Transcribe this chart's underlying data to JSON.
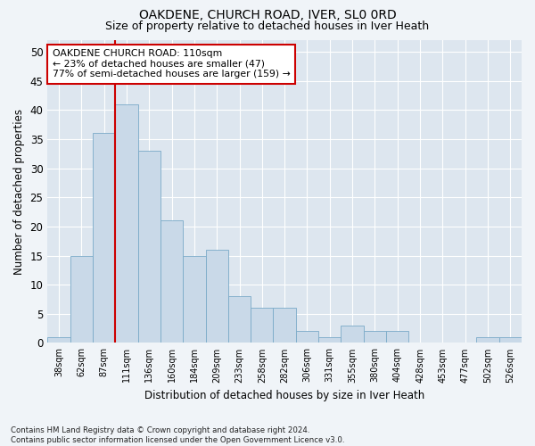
{
  "title": "OAKDENE, CHURCH ROAD, IVER, SL0 0RD",
  "subtitle": "Size of property relative to detached houses in Iver Heath",
  "xlabel": "Distribution of detached houses by size in Iver Heath",
  "ylabel": "Number of detached properties",
  "categories": [
    "38sqm",
    "62sqm",
    "87sqm",
    "111sqm",
    "136sqm",
    "160sqm",
    "184sqm",
    "209sqm",
    "233sqm",
    "258sqm",
    "282sqm",
    "306sqm",
    "331sqm",
    "355sqm",
    "380sqm",
    "404sqm",
    "428sqm",
    "453sqm",
    "477sqm",
    "502sqm",
    "526sqm"
  ],
  "values": [
    1,
    15,
    36,
    41,
    33,
    21,
    15,
    16,
    8,
    6,
    6,
    2,
    1,
    3,
    2,
    2,
    0,
    0,
    0,
    1,
    1
  ],
  "bar_color": "#c9d9e8",
  "bar_edge_color": "#7aaac8",
  "property_line_index": 3,
  "property_line_color": "#cc0000",
  "annotation_text": "OAKDENE CHURCH ROAD: 110sqm\n← 23% of detached houses are smaller (47)\n77% of semi-detached houses are larger (159) →",
  "annotation_box_color": "#ffffff",
  "annotation_box_edge_color": "#cc0000",
  "ylim": [
    0,
    52
  ],
  "yticks": [
    0,
    5,
    10,
    15,
    20,
    25,
    30,
    35,
    40,
    45,
    50
  ],
  "fig_background": "#f0f4f8",
  "plot_background": "#dde6ef",
  "grid_color": "#ffffff",
  "footnote": "Contains HM Land Registry data © Crown copyright and database right 2024.\nContains public sector information licensed under the Open Government Licence v3.0."
}
